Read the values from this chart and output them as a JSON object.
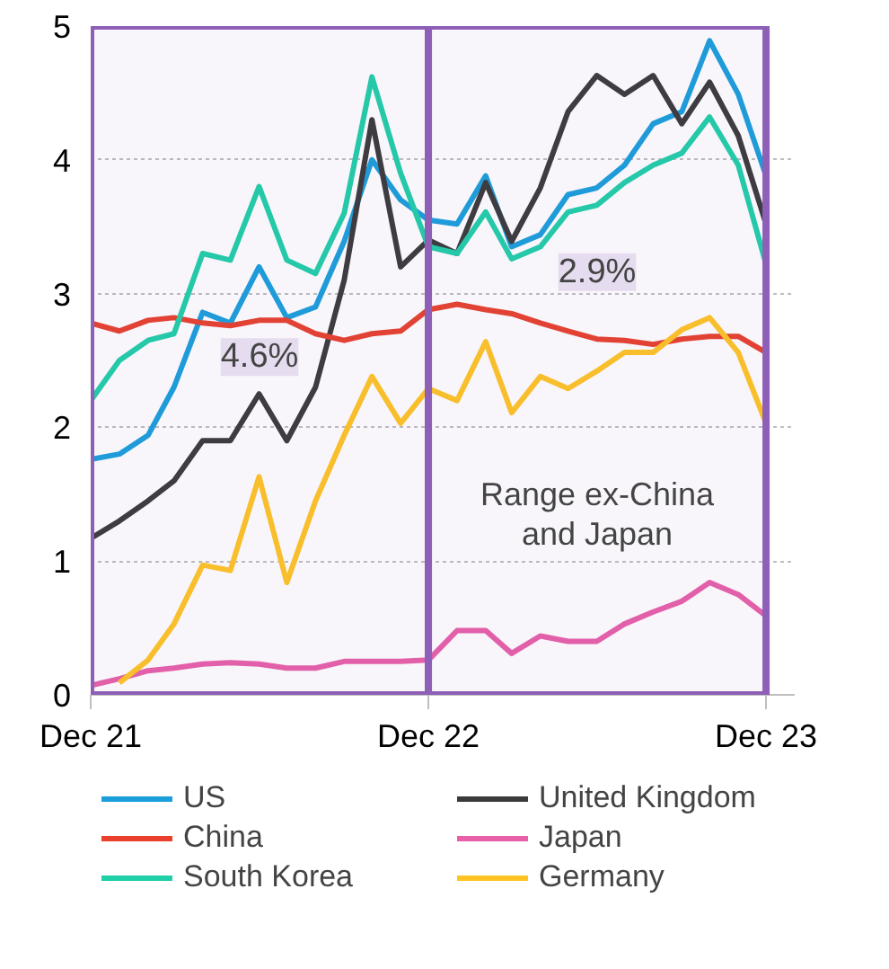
{
  "chart_data": {
    "type": "line",
    "x": [
      "2021-12",
      "2022-01",
      "2022-02",
      "2022-03",
      "2022-04",
      "2022-05",
      "2022-06",
      "2022-07",
      "2022-08",
      "2022-09",
      "2022-10",
      "2022-11",
      "2022-12",
      "2023-01",
      "2023-02",
      "2023-03",
      "2023-04",
      "2023-05",
      "2023-06",
      "2023-07",
      "2023-08",
      "2023-09",
      "2023-10",
      "2023-11",
      "2023-12"
    ],
    "series": [
      {
        "name": "US",
        "color": "#1a9fdb",
        "values": [
          1.76,
          1.8,
          1.94,
          2.3,
          2.86,
          2.78,
          3.2,
          2.82,
          2.9,
          3.39,
          4.0,
          3.7,
          3.55,
          3.52,
          3.88,
          3.35,
          3.44,
          3.74,
          3.79,
          3.96,
          4.27,
          4.36,
          4.89,
          4.49,
          3.88
        ]
      },
      {
        "name": "United Kingdom",
        "color": "#3a3a3a",
        "values": [
          1.17,
          1.3,
          1.45,
          1.6,
          1.9,
          1.9,
          2.25,
          1.9,
          2.3,
          3.1,
          4.3,
          3.2,
          3.4,
          3.3,
          3.83,
          3.39,
          3.79,
          4.36,
          4.63,
          4.49,
          4.63,
          4.27,
          4.58,
          4.18,
          3.52
        ]
      },
      {
        "name": "China",
        "color": "#e8402c",
        "values": [
          2.78,
          2.72,
          2.8,
          2.82,
          2.78,
          2.76,
          2.8,
          2.8,
          2.7,
          2.65,
          2.7,
          2.72,
          2.88,
          2.92,
          2.88,
          2.85,
          2.78,
          2.72,
          2.66,
          2.65,
          2.62,
          2.66,
          2.68,
          2.68,
          2.56
        ]
      },
      {
        "name": "Japan",
        "color": "#e85fa8",
        "values": [
          0.07,
          0.12,
          0.18,
          0.2,
          0.23,
          0.24,
          0.23,
          0.2,
          0.2,
          0.25,
          0.25,
          0.25,
          0.26,
          0.48,
          0.48,
          0.31,
          0.44,
          0.4,
          0.4,
          0.53,
          0.62,
          0.7,
          0.84,
          0.75,
          0.59
        ]
      },
      {
        "name": "South Korea",
        "color": "#1fcfa8",
        "values": [
          2.2,
          2.5,
          2.65,
          2.7,
          3.3,
          3.25,
          3.8,
          3.25,
          3.15,
          3.6,
          4.62,
          3.9,
          3.35,
          3.3,
          3.61,
          3.26,
          3.35,
          3.61,
          3.66,
          3.83,
          3.96,
          4.05,
          4.32,
          3.96,
          3.22
        ]
      },
      {
        "name": "Germany",
        "color": "#ffc423",
        "values": [
          null,
          0.09,
          0.26,
          0.53,
          0.97,
          0.93,
          1.63,
          0.84,
          1.45,
          1.94,
          2.38,
          2.03,
          2.29,
          2.2,
          2.64,
          2.11,
          2.38,
          2.29,
          2.42,
          2.56,
          2.56,
          2.73,
          2.82,
          2.56,
          2.03
        ]
      }
    ],
    "xlim": [
      "2021-12",
      "2024-01"
    ],
    "xticks": [
      {
        "value": "2021-12",
        "label": "Dec 21"
      },
      {
        "value": "2022-12",
        "label": "Dec 22"
      },
      {
        "value": "2023-12",
        "label": "Dec 23"
      }
    ],
    "ylim": [
      0,
      5
    ],
    "yticks": [
      0,
      1,
      2,
      3,
      4,
      5
    ],
    "grid": "y",
    "legend": "bottom",
    "marker": "none",
    "line_style": "solid",
    "bands": [
      {
        "axis": "x",
        "from": "2021-12",
        "to": "2022-12",
        "label": "4.6%",
        "color": "#8e5fb7"
      },
      {
        "axis": "x",
        "from": "2022-12",
        "to": "2023-12",
        "label": "2.9%",
        "color": "#8e5fb7"
      }
    ],
    "annotations": [
      "Range ex-China and Japan"
    ]
  }
}
